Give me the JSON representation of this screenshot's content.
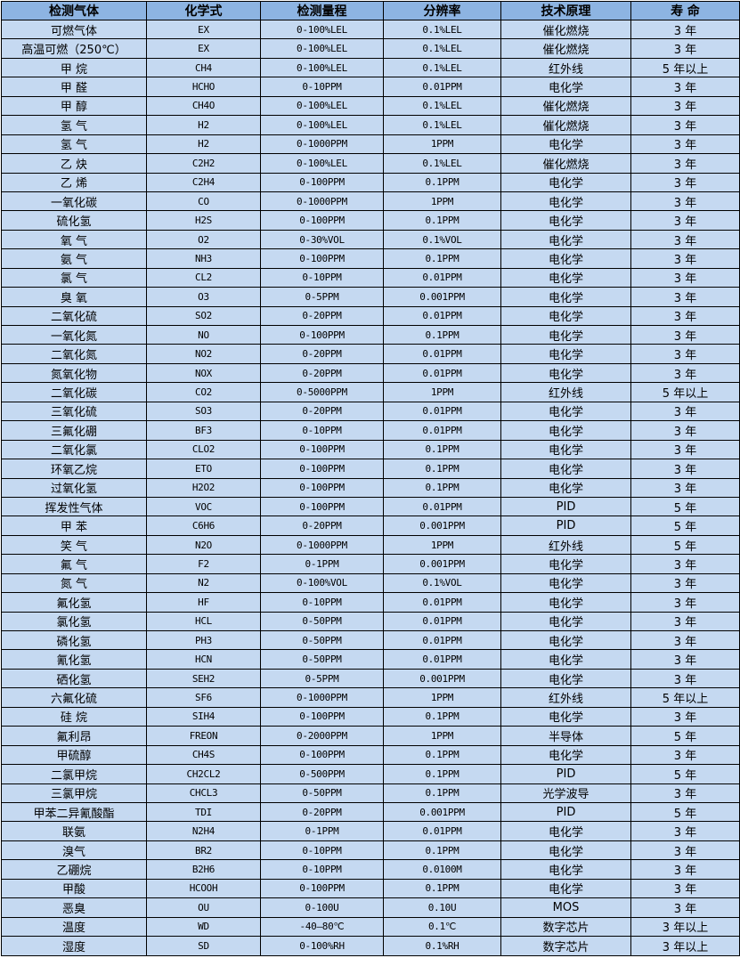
{
  "table": {
    "headers": [
      "检测气体",
      "化学式",
      "检测量程",
      "分辨率",
      "技术原理",
      "寿 命"
    ],
    "rows": [
      [
        "可燃气体",
        "EX",
        "0-100%LEL",
        "0.1%LEL",
        "催化燃烧",
        "3 年"
      ],
      [
        "高温可燃（250℃）",
        "EX",
        "0-100%LEL",
        "0.1%LEL",
        "催化燃烧",
        "3 年"
      ],
      [
        "甲 烷",
        "CH4",
        "0-100%LEL",
        "0.1%LEL",
        "红外线",
        "5 年以上"
      ],
      [
        "甲 醛",
        "HCHO",
        "0-10PPM",
        "0.01PPM",
        "电化学",
        "3 年"
      ],
      [
        "甲 醇",
        "CH4O",
        "0-100%LEL",
        "0.1%LEL",
        "催化燃烧",
        "3 年"
      ],
      [
        "氢 气",
        "H2",
        "0-100%LEL",
        "0.1%LEL",
        "催化燃烧",
        "3 年"
      ],
      [
        "氢 气",
        "H2",
        "0-1000PPM",
        "1PPM",
        "电化学",
        "3 年"
      ],
      [
        "乙 炔",
        "C2H2",
        "0-100%LEL",
        "0.1%LEL",
        "催化燃烧",
        "3 年"
      ],
      [
        "乙 烯",
        "C2H4",
        "0-100PPM",
        "0.1PPM",
        "电化学",
        "3 年"
      ],
      [
        "一氧化碳",
        "CO",
        "0-1000PPM",
        "1PPM",
        "电化学",
        "3 年"
      ],
      [
        "硫化氢",
        "H2S",
        "0-100PPM",
        "0.1PPM",
        "电化学",
        "3 年"
      ],
      [
        "氧 气",
        "O2",
        "0-30%VOL",
        "0.1%VOL",
        "电化学",
        "3 年"
      ],
      [
        "氨 气",
        "NH3",
        "0-100PPM",
        "0.1PPM",
        "电化学",
        "3 年"
      ],
      [
        "氯 气",
        "CL2",
        "0-10PPM",
        "0.01PPM",
        "电化学",
        "3 年"
      ],
      [
        "臭 氧",
        "O3",
        "0-5PPM",
        "0.001PPM",
        "电化学",
        "3 年"
      ],
      [
        "二氧化硫",
        "SO2",
        "0-20PPM",
        "0.01PPM",
        "电化学",
        "3 年"
      ],
      [
        "一氧化氮",
        "NO",
        "0-100PPM",
        "0.1PPM",
        "电化学",
        "3 年"
      ],
      [
        "二氧化氮",
        "NO2",
        "0-20PPM",
        "0.01PPM",
        "电化学",
        "3 年"
      ],
      [
        "氮氧化物",
        "NOX",
        "0-20PPM",
        "0.01PPM",
        "电化学",
        "3 年"
      ],
      [
        "二氧化碳",
        "CO2",
        "0-5000PPM",
        "1PPM",
        "红外线",
        "5 年以上"
      ],
      [
        "三氧化硫",
        "SO3",
        "0-20PPM",
        "0.01PPM",
        "电化学",
        "3 年"
      ],
      [
        "三氟化硼",
        "BF3",
        "0-10PPM",
        "0.01PPM",
        "电化学",
        "3 年"
      ],
      [
        "二氧化氯",
        "CLO2",
        "0-100PPM",
        "0.1PPM",
        "电化学",
        "3 年"
      ],
      [
        "环氧乙烷",
        "ETO",
        "0-100PPM",
        "0.1PPM",
        "电化学",
        "3 年"
      ],
      [
        "过氧化氢",
        "H2O2",
        "0-100PPM",
        "0.1PPM",
        "电化学",
        "3 年"
      ],
      [
        "挥发性气体",
        "VOC",
        "0-100PPM",
        "0.01PPM",
        "PID",
        "5 年"
      ],
      [
        "甲 苯",
        "C6H6",
        "0-20PPM",
        "0.001PPM",
        "PID",
        "5 年"
      ],
      [
        "笑 气",
        "N2O",
        "0-1000PPM",
        "1PPM",
        "红外线",
        "5 年"
      ],
      [
        "氟 气",
        "F2",
        "0-1PPM",
        "0.001PPM",
        "电化学",
        "3 年"
      ],
      [
        "氮 气",
        "N2",
        "0-100%VOL",
        "0.1%VOL",
        "电化学",
        "3 年"
      ],
      [
        "氟化氢",
        "HF",
        "0-10PPM",
        "0.01PPM",
        "电化学",
        "3 年"
      ],
      [
        "氯化氢",
        "HCL",
        "0-50PPM",
        "0.01PPM",
        "电化学",
        "3 年"
      ],
      [
        "磷化氢",
        "PH3",
        "0-50PPM",
        "0.01PPM",
        "电化学",
        "3 年"
      ],
      [
        "氰化氢",
        "HCN",
        "0-50PPM",
        "0.01PPM",
        "电化学",
        "3 年"
      ],
      [
        "硒化氢",
        "SEH2",
        "0-5PPM",
        "0.001PPM",
        "电化学",
        "3 年"
      ],
      [
        "六氟化硫",
        "SF6",
        "0-1000PPM",
        "1PPM",
        "红外线",
        "5 年以上"
      ],
      [
        "硅 烷",
        "SIH4",
        "0-100PPM",
        "0.1PPM",
        "电化学",
        "3 年"
      ],
      [
        "氟利昂",
        "FREON",
        "0-2000PPM",
        "1PPM",
        "半导体",
        "5 年"
      ],
      [
        "甲硫醇",
        "CH4S",
        "0-100PPM",
        "0.1PPM",
        "电化学",
        "3 年"
      ],
      [
        "二氯甲烷",
        "CH2CL2",
        "0-500PPM",
        "0.1PPM",
        "PID",
        "5 年"
      ],
      [
        "三氯甲烷",
        "CHCL3",
        "0-50PPM",
        "0.1PPM",
        "光学波导",
        "3 年"
      ],
      [
        "甲苯二异氰酸酯",
        "TDI",
        "0-20PPM",
        "0.001PPM",
        "PID",
        "5 年"
      ],
      [
        "联氨",
        "N2H4",
        "0-1PPM",
        "0.01PPM",
        "电化学",
        "3 年"
      ],
      [
        "溴气",
        "BR2",
        "0-10PPM",
        "0.1PPM",
        "电化学",
        "3 年"
      ],
      [
        "乙硼烷",
        "B2H6",
        "0-10PPM",
        "0.0100M",
        "电化学",
        "3 年"
      ],
      [
        "甲酸",
        "HCOOH",
        "0-100PPM",
        "0.1PPM",
        "电化学",
        "3 年"
      ],
      [
        "恶臭",
        "OU",
        "0-100U",
        "0.10U",
        "MOS",
        "3 年"
      ],
      [
        "温度",
        "WD",
        "-40—80℃",
        "0.1℃",
        "数字芯片",
        "3 年以上"
      ],
      [
        "湿度",
        "SD",
        "0-100%RH",
        "0.1%RH",
        "数字芯片",
        "3 年以上"
      ]
    ]
  },
  "colors": {
    "header_bg": "#8db4e2",
    "row_bg": "#c5d9f1",
    "border": "#000000"
  }
}
